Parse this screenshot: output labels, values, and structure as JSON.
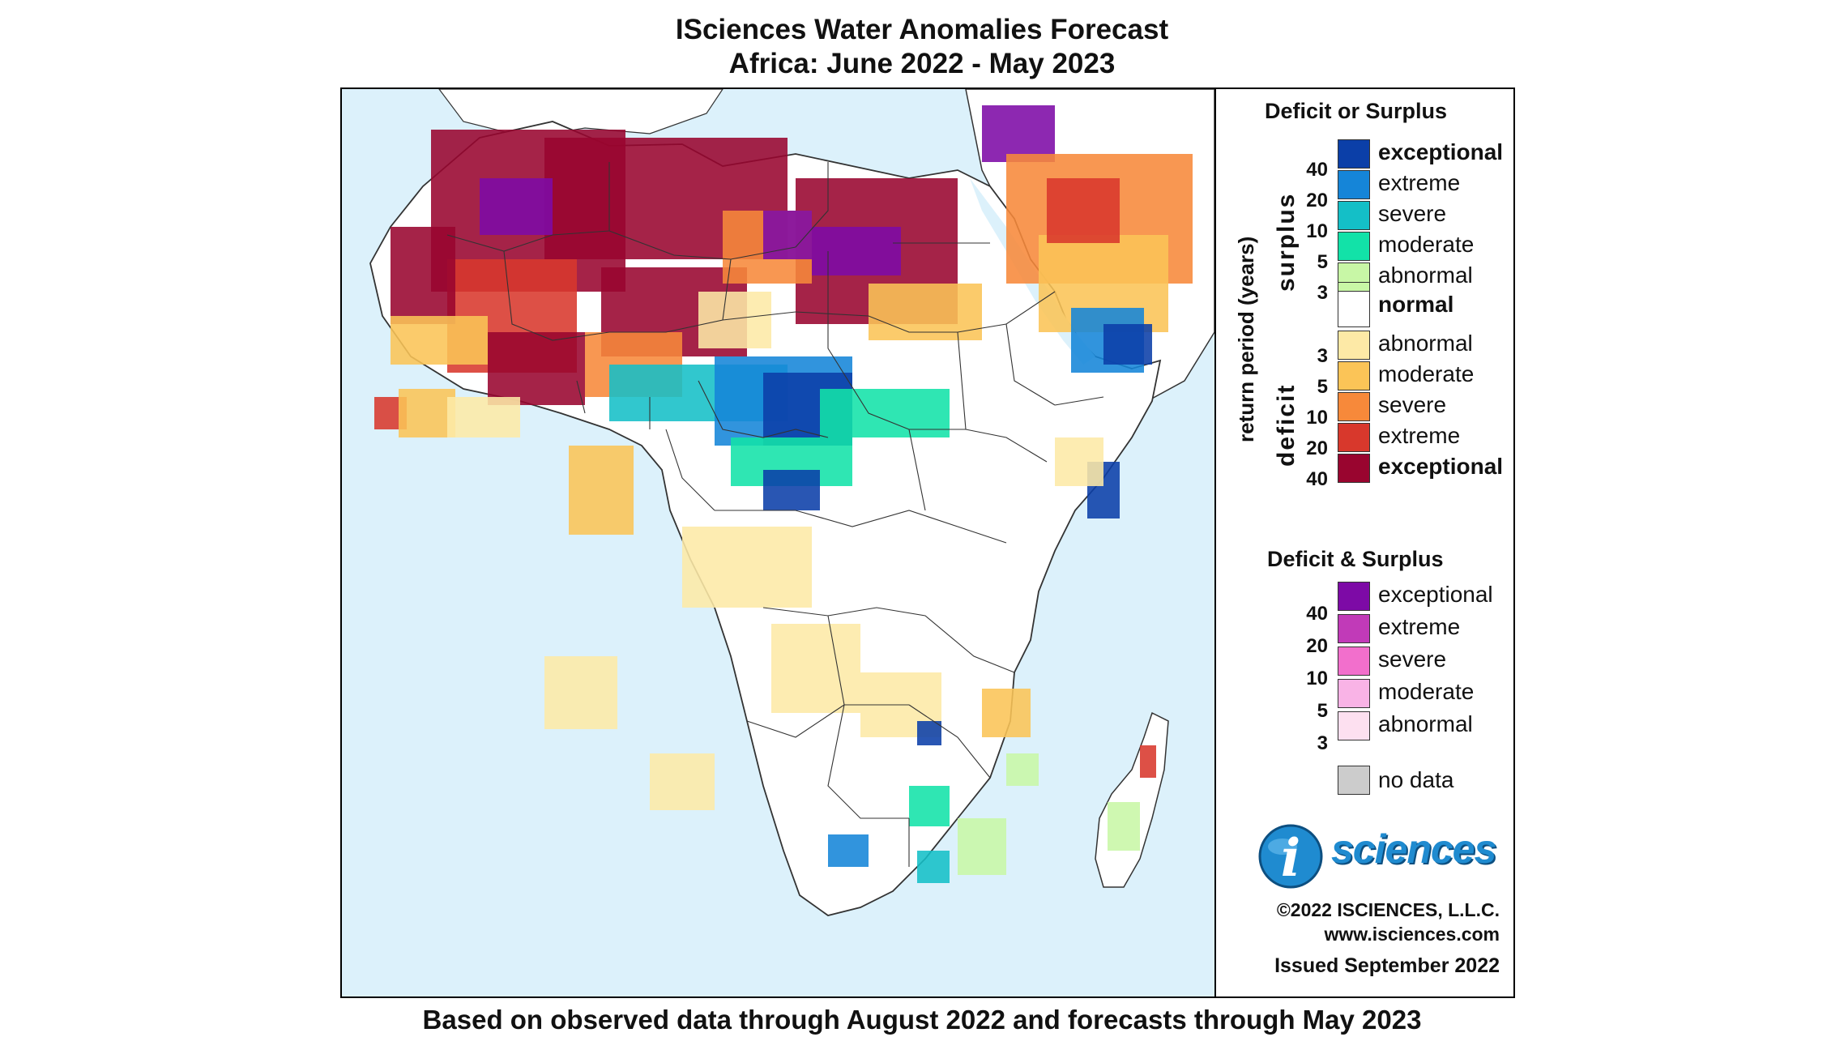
{
  "title_line1": "ISciences Water Anomalies Forecast",
  "title_line2": "Africa: June 2022 - May 2023",
  "footer": "Based on observed data through August 2022 and forecasts through May 2023",
  "legend": {
    "section1_title": "Deficit or Surplus",
    "axis_label": "return period (years)",
    "surplus_label": "surplus",
    "deficit_label": "deficit",
    "surplus_items": [
      {
        "label": "exceptional",
        "color": "#0b3fa8",
        "bold": true
      },
      {
        "label": "extreme",
        "color": "#1585d8",
        "bold": false
      },
      {
        "label": "severe",
        "color": "#14bfc7",
        "bold": false
      },
      {
        "label": "moderate",
        "color": "#12e2a8",
        "bold": false
      },
      {
        "label": "abnormal",
        "color": "#c8f7a6",
        "bold": false
      }
    ],
    "surplus_numbers": [
      "40",
      "20",
      "10",
      "5",
      "3"
    ],
    "normal": {
      "label": "normal",
      "color": "#ffffff"
    },
    "deficit_items": [
      {
        "label": "abnormal",
        "color": "#fde9a6"
      },
      {
        "label": "moderate",
        "color": "#fbc457"
      },
      {
        "label": "severe",
        "color": "#f7893a"
      },
      {
        "label": "extreme",
        "color": "#d8382c"
      },
      {
        "label": "exceptional",
        "color": "#99052f"
      }
    ],
    "deficit_numbers": [
      "3",
      "5",
      "10",
      "20",
      "40"
    ],
    "section2_title": "Deficit & Surplus",
    "both_items": [
      {
        "label": "exceptional",
        "color": "#7d0aa6"
      },
      {
        "label": "extreme",
        "color": "#c13ab8"
      },
      {
        "label": "severe",
        "color": "#f26fcc"
      },
      {
        "label": "moderate",
        "color": "#f9b3e6"
      },
      {
        "label": "abnormal",
        "color": "#fde0f0"
      }
    ],
    "both_numbers": [
      "40",
      "20",
      "10",
      "5",
      "3"
    ],
    "no_data": {
      "label": "no data",
      "color": "#cccccc"
    },
    "brand": "sciences",
    "brand_letter": "i",
    "copyright": "©2022 ISCIENCES, L.L.C.",
    "website": "www.isciences.com",
    "issued": "Issued September 2022"
  },
  "colors": {
    "ocean": "#dcf1fb",
    "land": "#ffffff",
    "border": "#333333"
  }
}
